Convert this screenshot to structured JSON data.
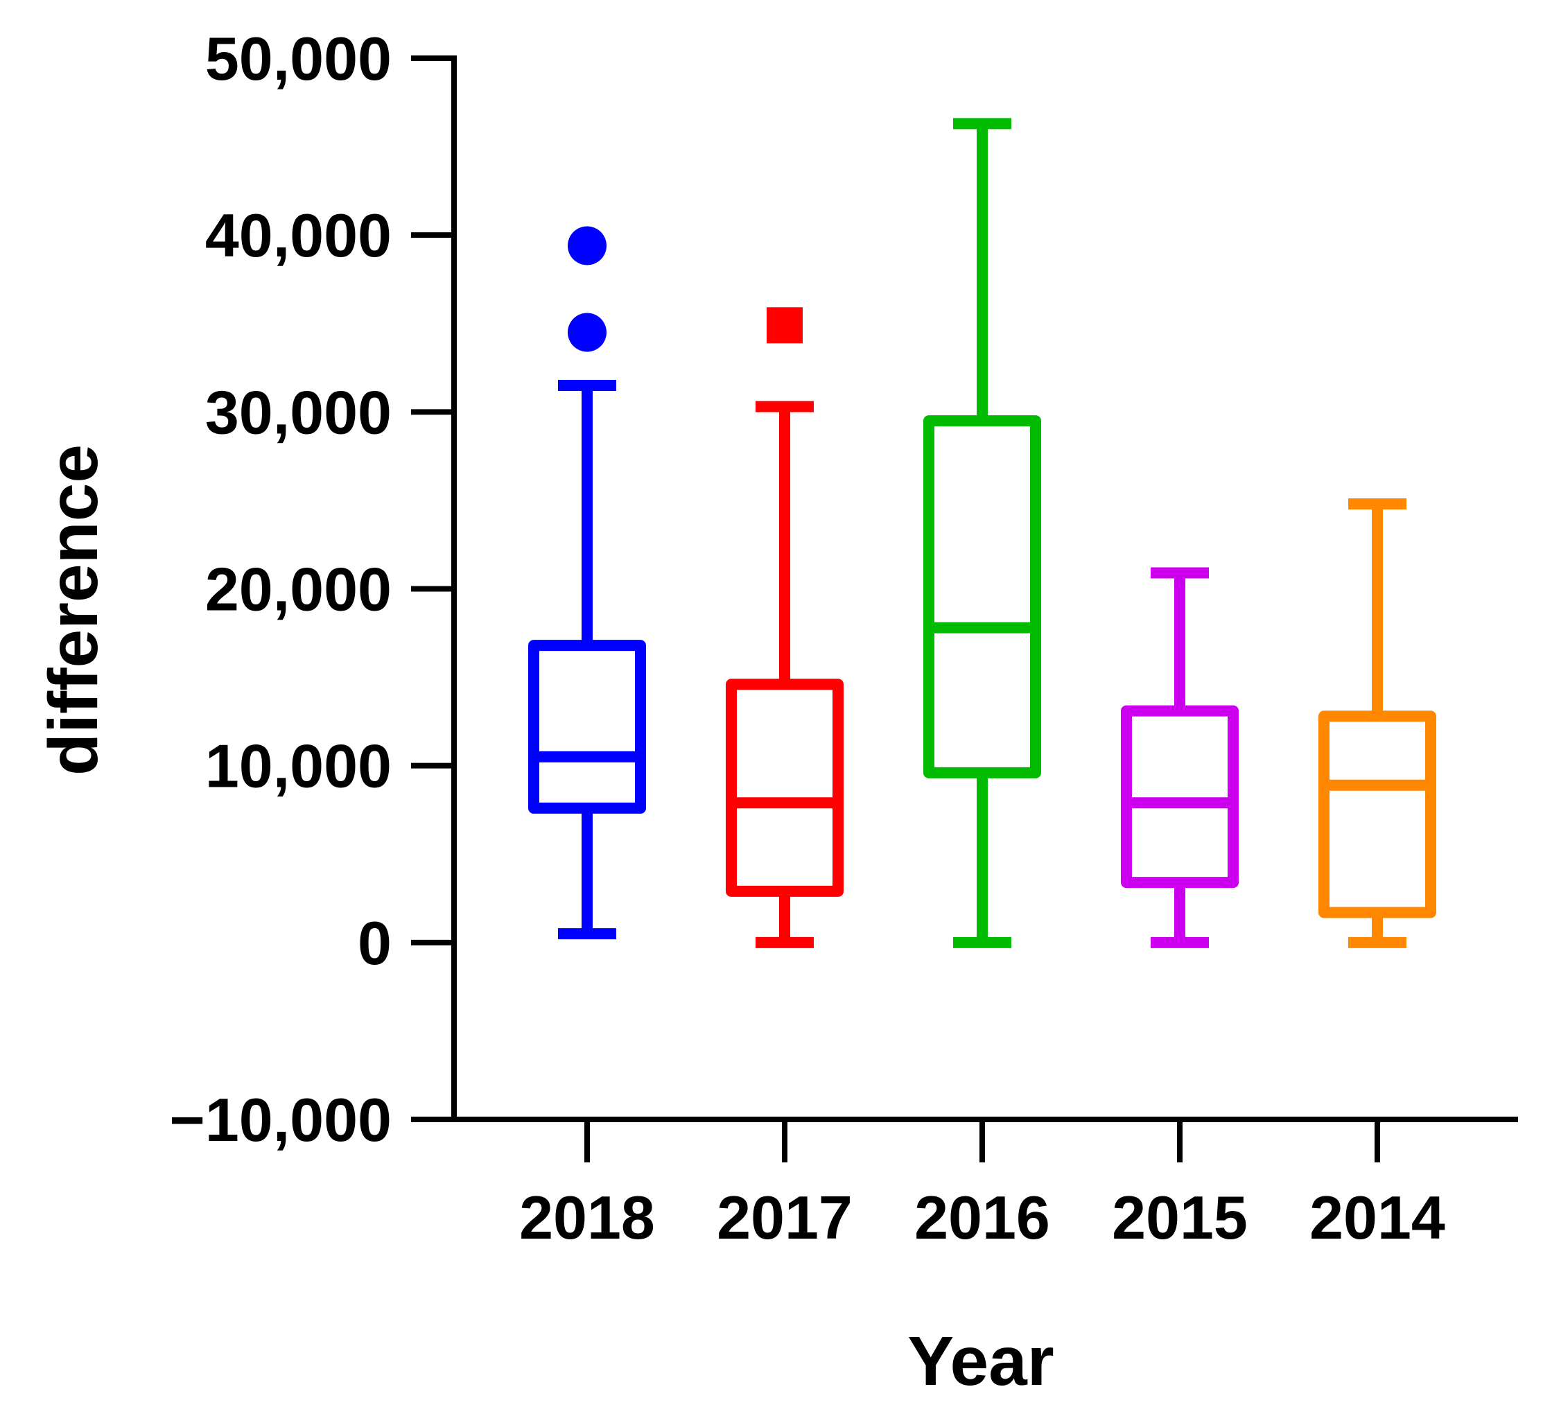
{
  "chart_data": {
    "type": "box",
    "title": "",
    "xlabel": "Year",
    "ylabel": "difference",
    "ylim": [
      -10000,
      50000
    ],
    "yticks": [
      -10000,
      0,
      10000,
      20000,
      30000,
      40000,
      50000
    ],
    "ytick_labels": [
      "−10,000",
      "0",
      "10,000",
      "20,000",
      "30,000",
      "40,000",
      "50,000"
    ],
    "grid": false,
    "legend": "none",
    "categories": [
      "2018",
      "2017",
      "2016",
      "2015",
      "2014"
    ],
    "series": [
      {
        "category": "2018",
        "color": "#0000ff",
        "marker": "circle",
        "whisker_low": 500,
        "q1": 7600,
        "median": 10500,
        "q3": 16800,
        "whisker_high": 31500,
        "outliers": [
          39400,
          34500
        ]
      },
      {
        "category": "2017",
        "color": "#ff0000",
        "marker": "square",
        "whisker_low": 0,
        "q1": 2900,
        "median": 7900,
        "q3": 14600,
        "whisker_high": 30300,
        "outliers": [
          34900
        ]
      },
      {
        "category": "2016",
        "color": "#00bb00",
        "marker": "none",
        "whisker_low": 0,
        "q1": 9600,
        "median": 17800,
        "q3": 29500,
        "whisker_high": 46300,
        "outliers": []
      },
      {
        "category": "2015",
        "color": "#cc00ee",
        "marker": "none",
        "whisker_low": 0,
        "q1": 3400,
        "median": 7900,
        "q3": 13100,
        "whisker_high": 20900,
        "outliers": []
      },
      {
        "category": "2014",
        "color": "#ff8800",
        "marker": "none",
        "whisker_low": 0,
        "q1": 1700,
        "median": 8900,
        "q3": 12800,
        "whisker_high": 24800,
        "outliers": []
      }
    ]
  }
}
